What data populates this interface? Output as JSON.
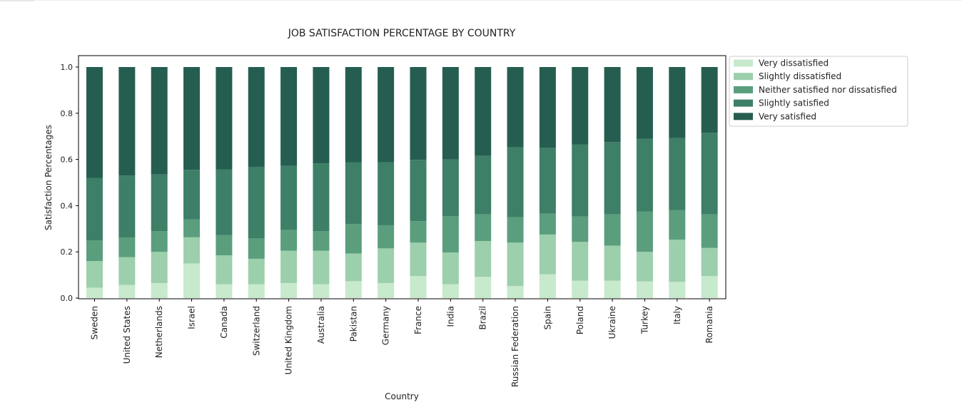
{
  "chart_data": {
    "type": "bar",
    "stacked": true,
    "title": "JOB SATISFACTION PERCENTAGE BY COUNTRY",
    "xlabel": "Country",
    "ylabel": "Satisfaction Percentages",
    "ylim": [
      0,
      1.05
    ],
    "yticks": [
      "0.0",
      "0.2",
      "0.4",
      "0.6",
      "0.8",
      "1.0"
    ],
    "grid": false,
    "legend_position": "outside-top-right",
    "categories": [
      "Sweden",
      "United States",
      "Netherlands",
      "Israel",
      "Canada",
      "Switzerland",
      "United Kingdom",
      "Australia",
      "Pakistan",
      "Germany",
      "France",
      "India",
      "Brazil",
      "Russian Federation",
      "Spain",
      "Poland",
      "Ukraine",
      "Turkey",
      "Italy",
      "Romania"
    ],
    "series": [
      {
        "name": "Very dissatisfied",
        "color": "#c7e9cc",
        "values": [
          0.045,
          0.057,
          0.065,
          0.15,
          0.06,
          0.06,
          0.065,
          0.06,
          0.073,
          0.065,
          0.095,
          0.06,
          0.092,
          0.052,
          0.103,
          0.075,
          0.075,
          0.072,
          0.07,
          0.095
        ]
      },
      {
        "name": "Slightly dissatisfied",
        "color": "#9ccfab",
        "values": [
          0.115,
          0.12,
          0.135,
          0.113,
          0.125,
          0.11,
          0.14,
          0.145,
          0.12,
          0.15,
          0.145,
          0.137,
          0.155,
          0.188,
          0.172,
          0.168,
          0.152,
          0.128,
          0.183,
          0.122
        ]
      },
      {
        "name": "Neither satisfied nor dissatisfied",
        "color": "#5a9e7d",
        "values": [
          0.09,
          0.085,
          0.09,
          0.077,
          0.087,
          0.088,
          0.09,
          0.085,
          0.127,
          0.1,
          0.093,
          0.158,
          0.115,
          0.11,
          0.09,
          0.11,
          0.135,
          0.175,
          0.127,
          0.145
        ]
      },
      {
        "name": "Slightly satisfied",
        "color": "#3e7f67",
        "values": [
          0.27,
          0.268,
          0.245,
          0.215,
          0.285,
          0.31,
          0.277,
          0.293,
          0.268,
          0.272,
          0.265,
          0.245,
          0.253,
          0.303,
          0.285,
          0.312,
          0.313,
          0.315,
          0.312,
          0.353
        ]
      },
      {
        "name": "Very satisfied",
        "color": "#255e51",
        "values": [
          0.48,
          0.47,
          0.465,
          0.445,
          0.443,
          0.432,
          0.428,
          0.417,
          0.412,
          0.413,
          0.402,
          0.4,
          0.385,
          0.347,
          0.35,
          0.335,
          0.325,
          0.31,
          0.308,
          0.285
        ]
      }
    ]
  }
}
